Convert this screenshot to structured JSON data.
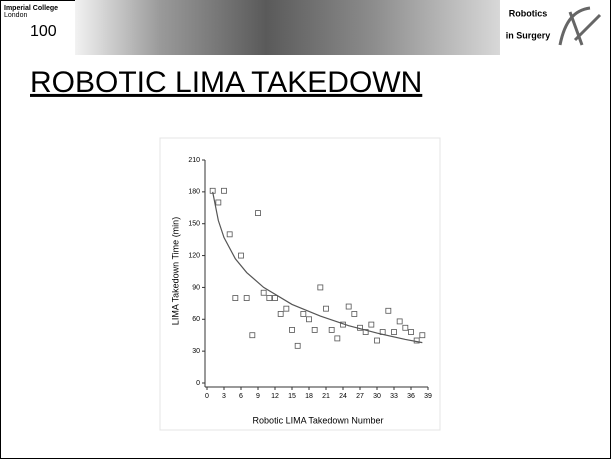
{
  "header": {
    "logo_lines": [
      "Imperial College",
      "London"
    ],
    "logo_number": "100",
    "badge_lines": [
      "Robotics",
      "in Surgery"
    ]
  },
  "title": "ROBOTIC LIMA TAKEDOWN",
  "chart_data": {
    "type": "scatter",
    "xlabel": "Robotic LIMA Takedown Number",
    "ylabel": "LIMA Takedown Time (min)",
    "xlim": [
      0,
      39
    ],
    "xticks": [
      0,
      3,
      6,
      9,
      12,
      15,
      18,
      21,
      24,
      27,
      30,
      33,
      36,
      39
    ],
    "ylim": [
      0,
      210
    ],
    "yticks": [
      0,
      30,
      60,
      90,
      120,
      150,
      180,
      210
    ],
    "series": [
      {
        "type": "scatter",
        "color": "#555555",
        "x": [
          1,
          2,
          3,
          4,
          5,
          6,
          7,
          8,
          9,
          10,
          11,
          12,
          13,
          14,
          15,
          16,
          17,
          18,
          19,
          20,
          21,
          22,
          23,
          24,
          25,
          26,
          27,
          28,
          29,
          30,
          31,
          32,
          33,
          34,
          35,
          36,
          37,
          38
        ],
        "values": [
          181,
          170,
          181,
          140,
          80,
          120,
          80,
          45,
          160,
          85,
          80,
          80,
          65,
          70,
          50,
          35,
          65,
          60,
          50,
          90,
          70,
          50,
          42,
          55,
          72,
          65,
          52,
          48,
          55,
          40,
          48,
          68,
          48,
          58,
          52,
          48,
          40,
          45
        ]
      },
      {
        "type": "line",
        "color": "#555555",
        "x": [
          1,
          2,
          3,
          5,
          7,
          10,
          15,
          20,
          25,
          30,
          35,
          38
        ],
        "values": [
          180,
          153,
          137,
          117,
          104,
          90,
          74,
          63,
          54,
          47,
          41,
          38
        ]
      }
    ]
  }
}
